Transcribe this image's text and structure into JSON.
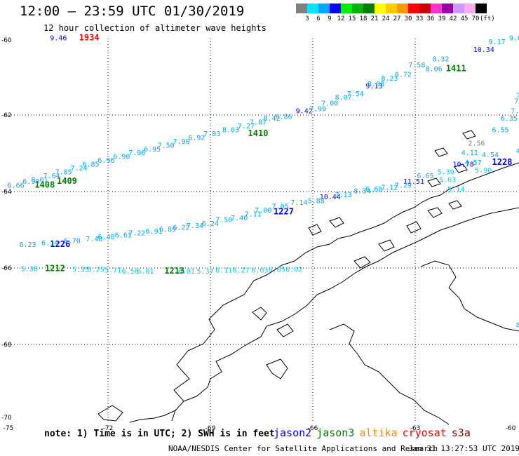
{
  "header": {
    "title": "12:00 — 23:59 UTC 01/30/2019",
    "subtitle": "12 hour collection of altimeter wave heights"
  },
  "color_scale": {
    "unit": "(ft)",
    "bins": [
      {
        "label": "3",
        "color": "#808080"
      },
      {
        "label": "6",
        "color": "#00e5ff"
      },
      {
        "label": "9",
        "color": "#00a6ff"
      },
      {
        "label": "12",
        "color": "#0000ff"
      },
      {
        "label": "15",
        "color": "#00ee00"
      },
      {
        "label": "18",
        "color": "#00b400"
      },
      {
        "label": "21",
        "color": "#007f00"
      },
      {
        "label": "24",
        "color": "#ffff00"
      },
      {
        "label": "27",
        "color": "#ffcc00"
      },
      {
        "label": "30",
        "color": "#ff9900"
      },
      {
        "label": "33",
        "color": "#ff0000"
      },
      {
        "label": "36",
        "color": "#cc0000"
      },
      {
        "label": "39",
        "color": "#ff33cc"
      },
      {
        "label": "42",
        "color": "#9900aa"
      },
      {
        "label": "45",
        "color": "#cc99ff"
      },
      {
        "label": "70",
        "color": "#ffaaee"
      },
      {
        "label": "",
        "color": "#000000"
      }
    ]
  },
  "map": {
    "lon_range": [
      -75,
      -60
    ],
    "lat_range": [
      -70,
      -60
    ],
    "grid": true,
    "lon_ticks": [
      "-75",
      "-72",
      "-69",
      "-66",
      "-63",
      "-60"
    ],
    "lat_ticks": [
      "-60",
      "-62",
      "-64",
      "-66",
      "-68",
      "-70"
    ],
    "tracks": [
      {
        "name": "jason2",
        "color": "#0000ff",
        "passes": [
          {
            "time": "1226",
            "lon": -73.7,
            "lat": -65.45
          },
          {
            "time": "1227",
            "lon": -67.15,
            "lat": -64.6
          },
          {
            "time": "1228",
            "lon": -60.75,
            "lat": -63.3
          }
        ],
        "points": [
          {
            "value": "10.78",
            "lon": -61.9,
            "lat": -63.35
          },
          {
            "value": "10.44",
            "lon": -65.8,
            "lat": -64.2
          },
          {
            "value": "11.51",
            "lon": -63.35,
            "lat": -63.8
          },
          {
            "value": "9.13",
            "lon": -64.45,
            "lat": -61.3
          },
          {
            "value": "10.34",
            "lon": -61.3,
            "lat": -60.35
          },
          {
            "value": "9.42",
            "lon": -66.5,
            "lat": -61.95
          },
          {
            "value": "9.46",
            "lon": -73.7,
            "lat": -60.05
          }
        ]
      },
      {
        "name": "jason3",
        "color": "#008000",
        "passes": [
          {
            "time": "1212",
            "lon": -73.85,
            "lat": -66.08
          },
          {
            "time": "1213",
            "lon": -70.35,
            "lat": -66.15
          },
          {
            "time": "1408",
            "lon": -74.15,
            "lat": -63.9
          },
          {
            "time": "1409",
            "lon": -73.5,
            "lat": -63.8
          },
          {
            "time": "1410",
            "lon": -67.9,
            "lat": -62.55
          },
          {
            "time": "1411",
            "lon": -62.1,
            "lat": -60.85
          }
        ],
        "points": []
      },
      {
        "name": "altika",
        "color": "#ff8c00",
        "passes": [],
        "points": []
      },
      {
        "name": "cryosat",
        "color": "#ff0000",
        "passes": [
          {
            "time": "1934",
            "lon": -72.85,
            "lat": -60.05
          }
        ],
        "points": []
      },
      {
        "name": "s3a",
        "color": "#800000",
        "passes": [],
        "points": []
      },
      {
        "name": "swh-light",
        "color": "#00a6ff",
        "passes": [],
        "points": [
          {
            "value": "9.17",
            "lon": -60.85,
            "lat": -60.15
          },
          {
            "value": "9.66",
            "lon": -60.25,
            "lat": -60.05
          },
          {
            "value": "8.32",
            "lon": -62.5,
            "lat": -60.6
          },
          {
            "value": "7.58",
            "lon": -63.2,
            "lat": -60.75
          },
          {
            "value": "8.06",
            "lon": -62.7,
            "lat": -60.85
          },
          {
            "value": "8.72",
            "lon": -63.6,
            "lat": -61.0
          },
          {
            "value": "8.23",
            "lon": -64.0,
            "lat": -61.1
          },
          {
            "value": "8.08",
            "lon": -64.4,
            "lat": -61.25
          },
          {
            "value": "7.54",
            "lon": -65.0,
            "lat": -61.5
          },
          {
            "value": "8.07",
            "lon": -65.35,
            "lat": -61.6
          },
          {
            "value": "7.00",
            "lon": -65.75,
            "lat": -61.75
          },
          {
            "value": "7.99",
            "lon": -66.1,
            "lat": -61.9
          },
          {
            "value": "6.86",
            "lon": -67.1,
            "lat": -62.1
          },
          {
            "value": "8.42",
            "lon": -67.45,
            "lat": -62.15
          },
          {
            "value": "7.87",
            "lon": -67.85,
            "lat": -62.25
          },
          {
            "value": "7.27",
            "lon": -68.2,
            "lat": -62.35
          },
          {
            "value": "8.03",
            "lon": -68.65,
            "lat": -62.45
          },
          {
            "value": "7.83",
            "lon": -69.2,
            "lat": -62.55
          },
          {
            "value": "6.92",
            "lon": -69.65,
            "lat": -62.65
          },
          {
            "value": "7.90",
            "lon": -70.1,
            "lat": -62.75
          },
          {
            "value": "7.50",
            "lon": -70.55,
            "lat": -62.85
          },
          {
            "value": "6.95",
            "lon": -70.95,
            "lat": -62.95
          },
          {
            "value": "7.96",
            "lon": -71.4,
            "lat": -63.05
          },
          {
            "value": "6.90",
            "lon": -71.85,
            "lat": -63.15
          },
          {
            "value": "6.96",
            "lon": -72.3,
            "lat": -63.25
          },
          {
            "value": "6.85",
            "lon": -72.75,
            "lat": -63.35
          },
          {
            "value": "7.24",
            "lon": -73.1,
            "lat": -63.45
          },
          {
            "value": "7.85",
            "lon": -73.55,
            "lat": -63.55
          },
          {
            "value": "7.64",
            "lon": -73.9,
            "lat": -63.65
          },
          {
            "value": "8.01",
            "lon": -74.25,
            "lat": -63.75
          },
          {
            "value": "6.99",
            "lon": -74.5,
            "lat": -63.8
          },
          {
            "value": "6.66",
            "lon": -74.95,
            "lat": -63.9
          },
          {
            "value": "7.3",
            "lon": -60.1,
            "lat": -61.7
          },
          {
            "value": "7.08",
            "lon": -60.2,
            "lat": -61.95
          },
          {
            "value": "6.35",
            "lon": -60.5,
            "lat": -62.15
          },
          {
            "value": "6.55",
            "lon": -60.75,
            "lat": -62.45
          },
          {
            "value": "4.11",
            "lon": -61.65,
            "lat": -63.05
          },
          {
            "value": "4.54",
            "lon": -61.05,
            "lat": -63.1
          },
          {
            "value": "4.57",
            "lon": -61.55,
            "lat": -63.3
          },
          {
            "value": "6.65",
            "lon": -62.95,
            "lat": -63.65
          },
          {
            "value": "7.29",
            "lon": -63.6,
            "lat": -63.9
          },
          {
            "value": "7.12",
            "lon": -64.0,
            "lat": -63.95
          },
          {
            "value": "6.60",
            "lon": -64.45,
            "lat": -64.0
          },
          {
            "value": "8.34",
            "lon": -64.8,
            "lat": -64.05
          },
          {
            "value": "7.13",
            "lon": -65.35,
            "lat": -64.15
          },
          {
            "value": "5.88",
            "lon": -66.15,
            "lat": -64.3
          },
          {
            "value": "7.14",
            "lon": -66.65,
            "lat": -64.35
          },
          {
            "value": "7.05",
            "lon": -67.2,
            "lat": -64.45
          },
          {
            "value": "7.00",
            "lon": -67.7,
            "lat": -64.55
          },
          {
            "value": "7.11",
            "lon": -68.0,
            "lat": -64.65
          },
          {
            "value": "7.40",
            "lon": -68.4,
            "lat": -64.75
          },
          {
            "value": "7.50",
            "lon": -68.85,
            "lat": -64.8
          },
          {
            "value": "6.24",
            "lon": -69.25,
            "lat": -64.9
          },
          {
            "value": "7.34",
            "lon": -69.7,
            "lat": -64.95
          },
          {
            "value": "6.22",
            "lon": -70.1,
            "lat": -65.0
          },
          {
            "value": "6.89",
            "lon": -70.5,
            "lat": -65.05
          },
          {
            "value": "6.91",
            "lon": -70.9,
            "lat": -65.1
          },
          {
            "value": "7.22",
            "lon": -71.4,
            "lat": -65.15
          },
          {
            "value": "6.61",
            "lon": -71.8,
            "lat": -65.2
          },
          {
            "value": "6.48",
            "lon": -72.3,
            "lat": -65.25
          },
          {
            "value": "7.48",
            "lon": -72.65,
            "lat": -65.3
          },
          {
            "value": "6.70",
            "lon": -73.3,
            "lat": -65.35
          },
          {
            "value": "6.14",
            "lon": -73.95,
            "lat": -65.4
          },
          {
            "value": "6.23",
            "lon": -74.6,
            "lat": -65.45
          }
        ]
      },
      {
        "name": "swh-cyan",
        "color": "#00ccee",
        "passes": [],
        "points": [
          {
            "value": "7.",
            "lon": -60.05,
            "lat": -61.55
          },
          {
            "value": "4.3",
            "lon": -60.05,
            "lat": -63.0
          },
          {
            "value": "5.90",
            "lon": -61.25,
            "lat": -63.5
          },
          {
            "value": "5.39",
            "lon": -62.35,
            "lat": -63.55
          },
          {
            "value": "5.03",
            "lon": -62.3,
            "lat": -63.75
          },
          {
            "value": "5.14",
            "lon": -62.05,
            "lat": -64.0
          },
          {
            "value": "6.02",
            "lon": -66.8,
            "lat": -66.1
          },
          {
            "value": "6.65",
            "lon": -67.3,
            "lat": -66.1
          },
          {
            "value": "6.03",
            "lon": -67.8,
            "lat": -66.12
          },
          {
            "value": "6.27",
            "lon": -68.35,
            "lat": -66.12
          },
          {
            "value": "6.11",
            "lon": -68.85,
            "lat": -66.12
          },
          {
            "value": "5.37",
            "lon": -69.4,
            "lat": -66.15
          },
          {
            "value": "6.01",
            "lon": -69.95,
            "lat": -66.15
          },
          {
            "value": "6.01",
            "lon": -71.15,
            "lat": -66.15
          },
          {
            "value": "6.56",
            "lon": -71.6,
            "lat": -66.15
          },
          {
            "value": "5.71",
            "lon": -72.1,
            "lat": -66.12
          },
          {
            "value": "5.25",
            "lon": -72.6,
            "lat": -66.1
          },
          {
            "value": "5.35",
            "lon": -73.05,
            "lat": -66.1
          },
          {
            "value": "5.38",
            "lon": -74.55,
            "lat": -66.08
          },
          {
            "value": "8",
            "lon": -60.05,
            "lat": -67.55
          }
        ]
      },
      {
        "name": "swh-gray",
        "color": "#808080",
        "passes": [],
        "points": [
          {
            "value": "2.56",
            "lon": -61.45,
            "lat": -62.8
          }
        ]
      }
    ]
  },
  "footer": {
    "note": "note: 1) Time is in UTC; 2) SWH is in feet",
    "legend": [
      {
        "name": "jason2",
        "color": "#0000ff"
      },
      {
        "name": "jason3",
        "color": "#008000"
      },
      {
        "name": "altika",
        "color": "#ff8c00"
      },
      {
        "name": "cryosat",
        "color": "#ff0000"
      },
      {
        "name": "s3a",
        "color": "#800000"
      }
    ],
    "credit": "NOAA/NESDIS Center for Satellite Applications and Research",
    "timestamp": "Jan 31 13:27:53 UTC 2019"
  }
}
